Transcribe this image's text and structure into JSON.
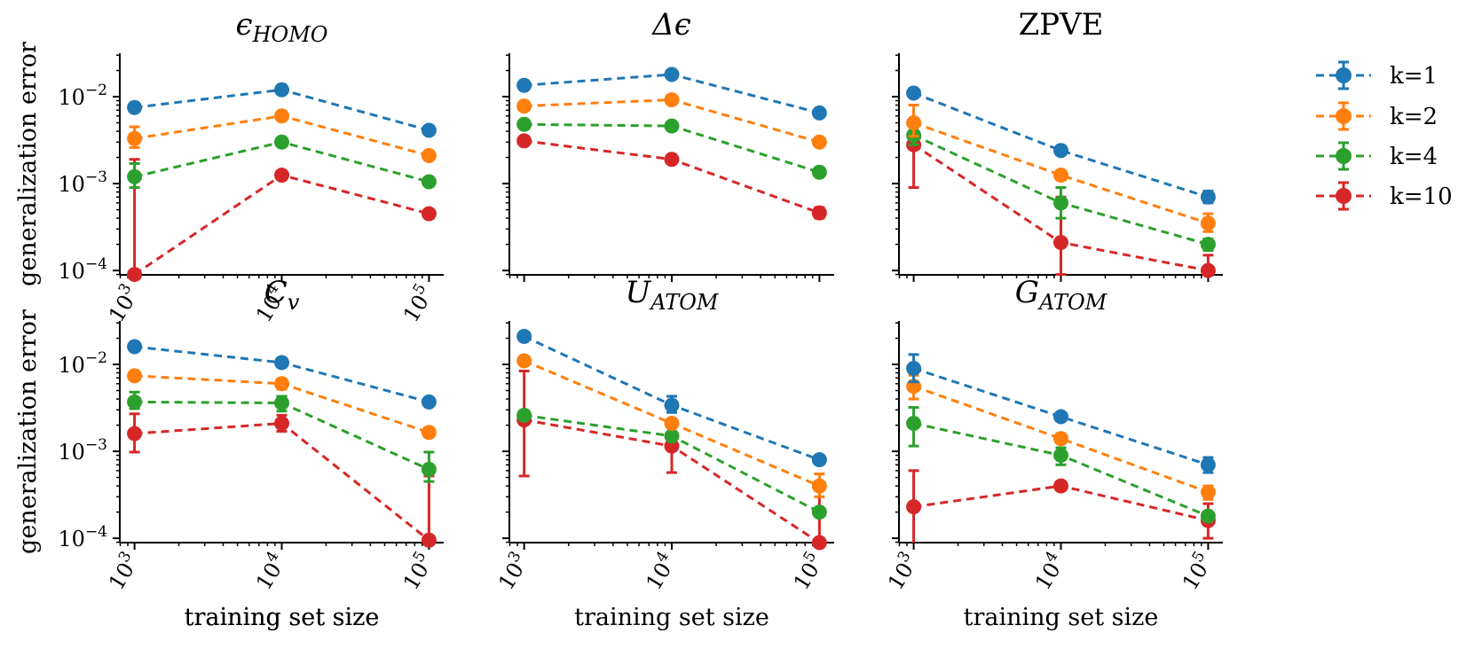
{
  "legend": [
    {
      "label": "k=1",
      "color": "#1f77b4"
    },
    {
      "label": "k=2",
      "color": "#ff7f0e"
    },
    {
      "label": "k=4",
      "color": "#2ca02c"
    },
    {
      "label": "k=10",
      "color": "#d62728"
    }
  ],
  "chart_data": [
    {
      "type": "line",
      "title": "ϵ",
      "title_sub": "HOMO",
      "title_italic": true,
      "xlabel": "training set size",
      "ylabel": "generalization error",
      "x": [
        1000,
        10000,
        100000
      ],
      "xlim_log10": [
        2.9,
        5.1
      ],
      "ylim_log10": [
        -4.05,
        -1.5
      ],
      "x_ticks": [
        {
          "base": "10",
          "exp": "3"
        },
        {
          "base": "10",
          "exp": "4"
        },
        {
          "base": "10",
          "exp": "5"
        }
      ],
      "y_ticks": [
        {
          "base": "10",
          "exp": "−2"
        },
        {
          "base": "10",
          "exp": "−3"
        },
        {
          "base": "10",
          "exp": "−4"
        }
      ],
      "series": [
        {
          "name": "k=1",
          "color": "#1f77b4",
          "values": [
            0.0075,
            0.012,
            0.0041
          ],
          "err_low": [
            0.0072,
            0.0116,
            0.0039
          ],
          "err_high": [
            0.0078,
            0.0124,
            0.0043
          ]
        },
        {
          "name": "k=2",
          "color": "#ff7f0e",
          "values": [
            0.0033,
            0.006,
            0.0021
          ],
          "err_low": [
            0.0026,
            0.0058,
            0.002
          ],
          "err_high": [
            0.0045,
            0.0062,
            0.0022
          ]
        },
        {
          "name": "k=4",
          "color": "#2ca02c",
          "values": [
            0.0012,
            0.003,
            0.00105
          ],
          "err_low": [
            0.0009,
            0.0029,
            0.001
          ],
          "err_high": [
            0.0017,
            0.0031,
            0.0011
          ]
        },
        {
          "name": "k=10",
          "color": "#d62728",
          "values": [
            9e-05,
            0.00125,
            0.00045
          ],
          "err_low": [
            9e-05,
            0.00118,
            0.00042
          ],
          "err_high": [
            0.0019,
            0.0013,
            0.00048
          ]
        }
      ]
    },
    {
      "type": "line",
      "title": "Δϵ",
      "title_sub": "",
      "title_italic": true,
      "xlabel": "",
      "ylabel": "",
      "x": [
        1000,
        10000,
        100000
      ],
      "xlim_log10": [
        2.9,
        5.1
      ],
      "ylim_log10": [
        -4.05,
        -1.5
      ],
      "x_ticks": [],
      "y_ticks": [],
      "series": [
        {
          "name": "k=1",
          "color": "#1f77b4",
          "values": [
            0.0135,
            0.018,
            0.0065
          ],
          "err_low": [
            0.013,
            0.0175,
            0.0062
          ],
          "err_high": [
            0.014,
            0.0185,
            0.0068
          ]
        },
        {
          "name": "k=2",
          "color": "#ff7f0e",
          "values": [
            0.0078,
            0.0092,
            0.003
          ],
          "err_low": [
            0.0075,
            0.0088,
            0.0029
          ],
          "err_high": [
            0.0081,
            0.0096,
            0.0031
          ]
        },
        {
          "name": "k=4",
          "color": "#2ca02c",
          "values": [
            0.0048,
            0.0046,
            0.00135
          ],
          "err_low": [
            0.0046,
            0.0044,
            0.0013
          ],
          "err_high": [
            0.005,
            0.0048,
            0.0014
          ]
        },
        {
          "name": "k=10",
          "color": "#d62728",
          "values": [
            0.0031,
            0.0019,
            0.00046
          ],
          "err_low": [
            0.003,
            0.0018,
            0.0004
          ],
          "err_high": [
            0.0032,
            0.002,
            0.00053
          ]
        }
      ]
    },
    {
      "type": "line",
      "title": "ZPVE",
      "title_sub": "",
      "title_italic": false,
      "xlabel": "",
      "ylabel": "",
      "x": [
        1000,
        10000,
        100000
      ],
      "xlim_log10": [
        2.9,
        5.1
      ],
      "ylim_log10": [
        -4.05,
        -1.5
      ],
      "x_ticks": [],
      "y_ticks": [],
      "series": [
        {
          "name": "k=1",
          "color": "#1f77b4",
          "values": [
            0.011,
            0.0024,
            0.0007
          ],
          "err_low": [
            0.0106,
            0.0023,
            0.0006
          ],
          "err_high": [
            0.0114,
            0.0025,
            0.00082
          ]
        },
        {
          "name": "k=2",
          "color": "#ff7f0e",
          "values": [
            0.005,
            0.00125,
            0.00035
          ],
          "err_low": [
            0.0035,
            0.0011,
            0.00028
          ],
          "err_high": [
            0.008,
            0.0014,
            0.00045
          ]
        },
        {
          "name": "k=4",
          "color": "#2ca02c",
          "values": [
            0.0036,
            0.0006,
            0.0002
          ],
          "err_low": [
            0.0028,
            0.0004,
            0.00017
          ],
          "err_high": [
            0.0045,
            0.0009,
            0.00023
          ]
        },
        {
          "name": "k=10",
          "color": "#d62728",
          "values": [
            0.0028,
            0.00021,
            0.0001
          ],
          "err_low": [
            0.0009,
            9e-05,
            9e-05
          ],
          "err_high": [
            0.0035,
            0.0007,
            0.00015
          ]
        }
      ]
    },
    {
      "type": "line",
      "title": "C",
      "title_sub": "v",
      "title_italic": true,
      "xlabel": "training set size",
      "ylabel": "generalization error",
      "x": [
        1000,
        10000,
        100000
      ],
      "xlim_log10": [
        2.9,
        5.1
      ],
      "ylim_log10": [
        -4.05,
        -1.5
      ],
      "x_ticks": [
        {
          "base": "10",
          "exp": "3"
        },
        {
          "base": "10",
          "exp": "4"
        },
        {
          "base": "10",
          "exp": "5"
        }
      ],
      "y_ticks": [
        {
          "base": "10",
          "exp": "−2"
        },
        {
          "base": "10",
          "exp": "−3"
        },
        {
          "base": "10",
          "exp": "−4"
        }
      ],
      "series": [
        {
          "name": "k=1",
          "color": "#1f77b4",
          "values": [
            0.016,
            0.0105,
            0.0037
          ],
          "err_low": [
            0.0155,
            0.0095,
            0.0035
          ],
          "err_high": [
            0.0165,
            0.0115,
            0.0039
          ]
        },
        {
          "name": "k=2",
          "color": "#ff7f0e",
          "values": [
            0.0074,
            0.006,
            0.00165
          ],
          "err_low": [
            0.0071,
            0.0052,
            0.00158
          ],
          "err_high": [
            0.0077,
            0.0068,
            0.00172
          ]
        },
        {
          "name": "k=4",
          "color": "#2ca02c",
          "values": [
            0.0037,
            0.0036,
            0.00062
          ],
          "err_low": [
            0.0031,
            0.0029,
            0.00045
          ],
          "err_high": [
            0.0048,
            0.0043,
            0.00098
          ]
        },
        {
          "name": "k=10",
          "color": "#d62728",
          "values": [
            0.0016,
            0.0021,
            9.5e-05
          ],
          "err_low": [
            0.00098,
            0.0017,
            9e-05
          ],
          "err_high": [
            0.0027,
            0.0026,
            0.00052
          ]
        }
      ]
    },
    {
      "type": "line",
      "title": "U",
      "title_sub": "ATOM",
      "title_italic": true,
      "xlabel": "training set size",
      "ylabel": "",
      "x": [
        1000,
        10000,
        100000
      ],
      "xlim_log10": [
        2.9,
        5.1
      ],
      "ylim_log10": [
        -4.05,
        -1.5
      ],
      "x_ticks": [
        {
          "base": "10",
          "exp": "3"
        },
        {
          "base": "10",
          "exp": "4"
        },
        {
          "base": "10",
          "exp": "5"
        }
      ],
      "y_ticks": [],
      "series": [
        {
          "name": "k=1",
          "color": "#1f77b4",
          "values": [
            0.021,
            0.0034,
            0.0008
          ],
          "err_low": [
            0.0202,
            0.0028,
            0.00077
          ],
          "err_high": [
            0.0218,
            0.0043,
            0.00083
          ]
        },
        {
          "name": "k=2",
          "color": "#ff7f0e",
          "values": [
            0.011,
            0.0021,
            0.0004
          ],
          "err_low": [
            0.0105,
            0.0019,
            0.0003
          ],
          "err_high": [
            0.0115,
            0.0023,
            0.00055
          ]
        },
        {
          "name": "k=4",
          "color": "#2ca02c",
          "values": [
            0.0026,
            0.0015,
            0.0002
          ],
          "err_low": [
            0.0024,
            0.00135,
            0.00018
          ],
          "err_high": [
            0.0028,
            0.00165,
            0.00022
          ]
        },
        {
          "name": "k=10",
          "color": "#d62728",
          "values": [
            0.0023,
            0.00115,
            8e-05
          ],
          "err_low": [
            0.00052,
            0.00057,
            8e-05
          ],
          "err_high": [
            0.0084,
            0.0014,
            0.00036
          ]
        }
      ]
    },
    {
      "type": "line",
      "title": "G",
      "title_sub": "ATOM",
      "title_italic": true,
      "xlabel": "training set size",
      "ylabel": "",
      "x": [
        1000,
        10000,
        100000
      ],
      "xlim_log10": [
        2.9,
        5.1
      ],
      "ylim_log10": [
        -4.05,
        -1.5
      ],
      "x_ticks": [
        {
          "base": "10",
          "exp": "3"
        },
        {
          "base": "10",
          "exp": "4"
        },
        {
          "base": "10",
          "exp": "5"
        }
      ],
      "y_ticks": [],
      "series": [
        {
          "name": "k=1",
          "color": "#1f77b4",
          "values": [
            0.009,
            0.0025,
            0.0007
          ],
          "err_low": [
            0.0063,
            0.0023,
            0.00057
          ],
          "err_high": [
            0.013,
            0.0027,
            0.00085
          ]
        },
        {
          "name": "k=2",
          "color": "#ff7f0e",
          "values": [
            0.0056,
            0.0014,
            0.00034
          ],
          "err_low": [
            0.004,
            0.00125,
            0.00028
          ],
          "err_high": [
            0.0075,
            0.0016,
            0.0004
          ]
        },
        {
          "name": "k=4",
          "color": "#2ca02c",
          "values": [
            0.0021,
            0.0009,
            0.00018
          ],
          "err_low": [
            0.00115,
            0.0007,
            0.00016
          ],
          "err_high": [
            0.0032,
            0.0011,
            0.0002
          ]
        },
        {
          "name": "k=10",
          "color": "#d62728",
          "values": [
            0.00023,
            0.0004,
            0.00016
          ],
          "err_low": [
            8e-05,
            0.00037,
            0.0001
          ],
          "err_high": [
            0.0006,
            0.00043,
            0.00025
          ]
        }
      ]
    }
  ]
}
